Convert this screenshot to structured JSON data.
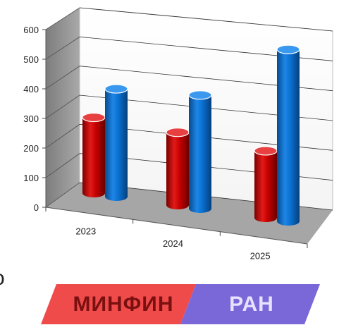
{
  "chart_data": {
    "type": "bar",
    "style": "3d-cylinder",
    "categories": [
      "2023",
      "2024",
      "2025"
    ],
    "series": [
      {
        "color": "#d40000",
        "values": [
          260,
          250,
          230
        ]
      },
      {
        "color": "#0a6fd0",
        "values": [
          370,
          390,
          590
        ]
      }
    ],
    "yticks": [
      "0",
      "100",
      "200",
      "300",
      "400",
      "500",
      "600"
    ],
    "ylim": [
      0,
      600
    ],
    "grid": true,
    "legend": "none",
    "title": "",
    "xlabel": "",
    "ylabel": ""
  },
  "badge": {
    "left_label": "МИНФИН",
    "right_label": "РАН",
    "left_color": "#ef4b4b",
    "right_color": "#7b68d8"
  },
  "stray_text": "o"
}
